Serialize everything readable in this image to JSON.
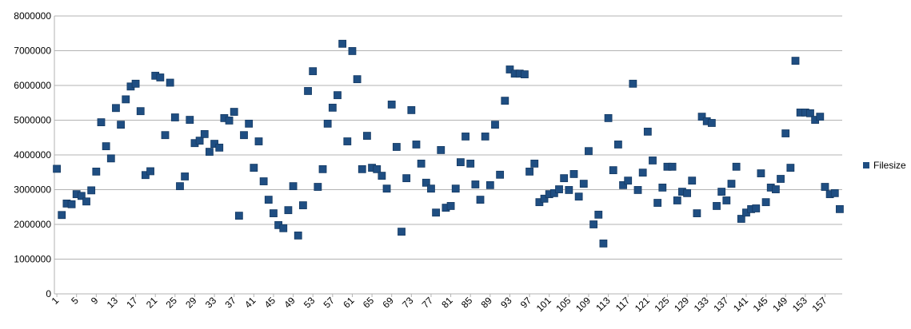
{
  "chart_data": {
    "type": "scatter",
    "categories": [
      "1",
      null,
      null,
      null,
      "5",
      null,
      null,
      null,
      "9",
      null,
      null,
      null,
      "13",
      null,
      null,
      null,
      "17",
      null,
      null,
      null,
      "21",
      null,
      null,
      null,
      "25",
      null,
      null,
      null,
      "29",
      null,
      null,
      null,
      "33",
      null,
      null,
      null,
      "37",
      null,
      null,
      null,
      "41",
      null,
      null,
      null,
      "45",
      null,
      null,
      null,
      "49",
      null,
      null,
      null,
      "53",
      null,
      null,
      null,
      "57",
      null,
      null,
      null,
      "61",
      null,
      null,
      null,
      "65",
      null,
      null,
      null,
      "69",
      null,
      null,
      null,
      "73",
      null,
      null,
      null,
      "77",
      null,
      null,
      null,
      "81",
      null,
      null,
      null,
      "85",
      null,
      null,
      null,
      "89",
      null,
      null,
      null,
      "93",
      null,
      null,
      null,
      "97",
      null,
      null,
      null,
      "101",
      null,
      null,
      null,
      "105",
      null,
      null,
      null,
      "109",
      null,
      null,
      null,
      "113",
      null,
      null,
      null,
      "117",
      null,
      null,
      null,
      "121",
      null,
      null,
      null,
      "125",
      null,
      null,
      null,
      "129",
      null,
      null,
      null,
      "133",
      null,
      null,
      null,
      "137",
      null,
      null,
      null,
      "141",
      null,
      null,
      null,
      "145",
      null,
      null,
      null,
      "149",
      null,
      null,
      null,
      "153",
      null,
      null,
      null,
      "157",
      null,
      null,
      null
    ],
    "series": [
      {
        "name": "Filesize",
        "color": "#1f4e82",
        "values": [
          3600000,
          2270000,
          2600000,
          2580000,
          2870000,
          2820000,
          2660000,
          2980000,
          3520000,
          4940000,
          4250000,
          3900000,
          5350000,
          4870000,
          5600000,
          5970000,
          6050000,
          5260000,
          3420000,
          3530000,
          6280000,
          6230000,
          4570000,
          6080000,
          5080000,
          3100000,
          3380000,
          5010000,
          4340000,
          4410000,
          4600000,
          4090000,
          4320000,
          4210000,
          5060000,
          4990000,
          5240000,
          2250000,
          4570000,
          4900000,
          3630000,
          4390000,
          3240000,
          2710000,
          2320000,
          1980000,
          1890000,
          2410000,
          3100000,
          1680000,
          2550000,
          5840000,
          6410000,
          3080000,
          3590000,
          4900000,
          5360000,
          5720000,
          7200000,
          4390000,
          6990000,
          6180000,
          3590000,
          4550000,
          3630000,
          3590000,
          3400000,
          3030000,
          5450000,
          4230000,
          1790000,
          3330000,
          5290000,
          4300000,
          3750000,
          3200000,
          3030000,
          2340000,
          4140000,
          2480000,
          2530000,
          3030000,
          3790000,
          4530000,
          3750000,
          3150000,
          2710000,
          4530000,
          3130000,
          4870000,
          3430000,
          5560000,
          6460000,
          6340000,
          6340000,
          6320000,
          3520000,
          3750000,
          2640000,
          2740000,
          2870000,
          2900000,
          3010000,
          3330000,
          2990000,
          3450000,
          2800000,
          3170000,
          4110000,
          2000000,
          2280000,
          1450000,
          5060000,
          3560000,
          4300000,
          3130000,
          3260000,
          6050000,
          2990000,
          3490000,
          4670000,
          3840000,
          2620000,
          3060000,
          3660000,
          3660000,
          2690000,
          2940000,
          2900000,
          3260000,
          2320000,
          5100000,
          4970000,
          4920000,
          2530000,
          2940000,
          2690000,
          3170000,
          3660000,
          2160000,
          2340000,
          2440000,
          2460000,
          3470000,
          2640000,
          3060000,
          3010000,
          3310000,
          4620000,
          3630000,
          6710000,
          5220000,
          5220000,
          5200000,
          5010000,
          5100000,
          3080000,
          2870000,
          2900000,
          2440000
        ]
      }
    ],
    "ylim": [
      0,
      8000000
    ],
    "yticks": [
      0,
      1000000,
      2000000,
      3000000,
      4000000,
      5000000,
      6000000,
      7000000,
      8000000
    ],
    "grid": true,
    "legend": "right"
  }
}
